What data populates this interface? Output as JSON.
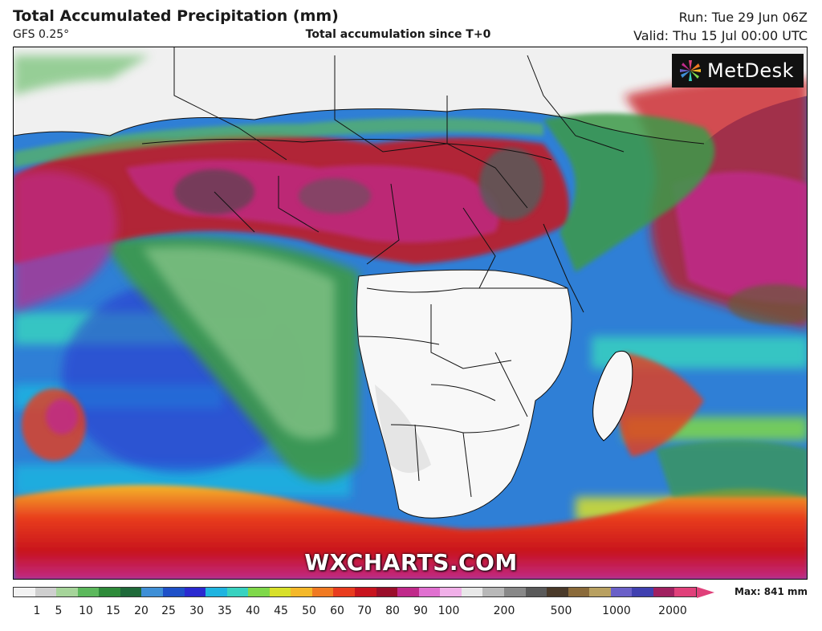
{
  "header": {
    "title": "Total Accumulated Precipitation (mm)",
    "model": "GFS 0.25°",
    "subtitle": "Total accumulation since T+0",
    "run": "Run: Tue 29 Jun 06Z",
    "valid": "Valid: Thu 15 Jul 00:00 UTC"
  },
  "branding": {
    "logo_text": "MetDesk",
    "watermark": "WXCHARTS.COM"
  },
  "legend": {
    "max_label": "Max: 841 mm",
    "ticks": [
      "1",
      "5",
      "10",
      "15",
      "20",
      "25",
      "30",
      "35",
      "40",
      "45",
      "50",
      "60",
      "70",
      "80",
      "90",
      "100",
      "200",
      "500",
      "1000",
      "2000"
    ],
    "colors": [
      "#f2f2f2",
      "#cfcfcf",
      "#a6d49a",
      "#5cb85c",
      "#2e8b3a",
      "#1f6a3a",
      "#3f8fd6",
      "#1e50c8",
      "#2a2ad0",
      "#1fb4e0",
      "#38d2c0",
      "#7fd84a",
      "#d8e02a",
      "#f4b82a",
      "#f07a22",
      "#e83c1e",
      "#c8141e",
      "#9a0e2a",
      "#c02a8a",
      "#e070d0",
      "#f0b0e8",
      "#e8e8e8",
      "#b8b8b8",
      "#888888",
      "#5a5a5a",
      "#4a3a2a",
      "#8a6a3a",
      "#b8a060",
      "#6a60c8",
      "#4040b0",
      "#a02060",
      "#e0407a"
    ]
  }
}
